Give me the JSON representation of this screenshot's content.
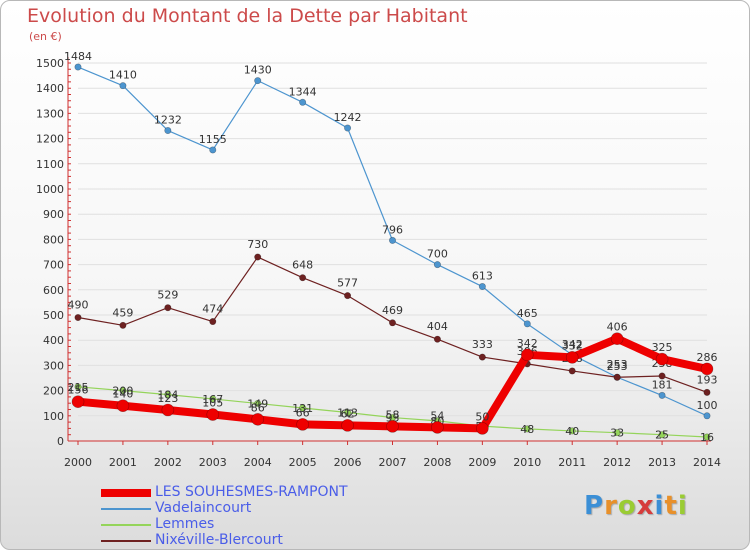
{
  "header": {
    "title": "Evolution du Montant de la Dette par Habitant",
    "subtitle": "(en €)"
  },
  "logo": {
    "text": "Proxiti",
    "letter_colors": [
      "#3b8fd6",
      "#e8902a",
      "#9acc33",
      "#d63c3c",
      "#3b8fd6",
      "#e8902a",
      "#9acc33"
    ]
  },
  "colors": {
    "title": "#cc4a4a",
    "legend_text": "#4a5de8",
    "axis": "#d03030",
    "grid": "#e0e0e0"
  },
  "chart_data": {
    "type": "line",
    "title": "Evolution du Montant de la Dette par Habitant",
    "ylabel": "(en €)",
    "xlabel": "",
    "x": [
      "2000",
      "2001",
      "2002",
      "2003",
      "2004",
      "2005",
      "2006",
      "2007",
      "2008",
      "2009",
      "2010",
      "2011",
      "2012",
      "2013",
      "2014"
    ],
    "ylim": [
      0,
      1500
    ],
    "yticks": [
      0,
      100,
      200,
      300,
      400,
      500,
      600,
      700,
      800,
      900,
      1000,
      1100,
      1200,
      1300,
      1400,
      1500
    ],
    "grid": true,
    "legend_position": "bottom-left",
    "series": [
      {
        "name": "Vadelaincourt",
        "color": "#4d95cf",
        "values": [
          1484,
          1410,
          1232,
          1155,
          1430,
          1344,
          1242,
          796,
          700,
          613,
          465,
          342,
          253,
          181,
          100
        ]
      },
      {
        "name": "Nixéville-Blercourt",
        "color": "#6e2121",
        "values": [
          490,
          459,
          529,
          474,
          730,
          648,
          577,
          469,
          404,
          333,
          306,
          278,
          253,
          258,
          193
        ]
      },
      {
        "name": "Lemmes",
        "color": "#94d45a",
        "values": [
          215,
          200,
          184,
          167,
          149,
          131,
          113,
          93,
          80,
          59,
          48,
          40,
          33,
          25,
          16
        ]
      },
      {
        "name": "LES SOUHESMES-RAMPONT",
        "color": "#ee0000",
        "values": [
          156,
          140,
          123,
          105,
          86,
          66,
          62,
          58,
          54,
          50,
          342,
          332,
          406,
          325,
          286
        ]
      }
    ],
    "legend": [
      "LES SOUHESMES-RAMPONT",
      "Vadelaincourt",
      "Lemmes",
      "Nixéville-Blercourt"
    ]
  }
}
